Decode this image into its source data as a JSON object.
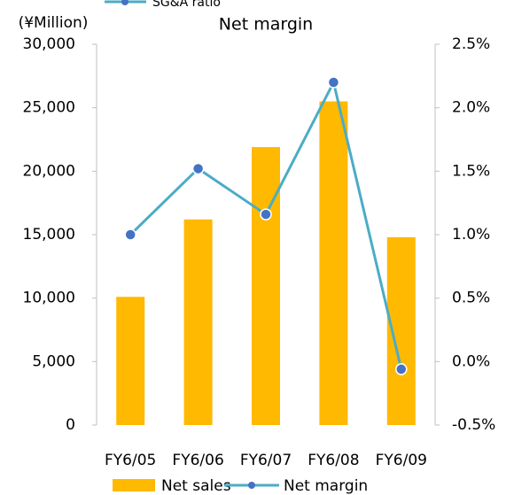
{
  "chart_data": {
    "type": "bar_line",
    "title": "Net margin",
    "y_label": "(¥Million)",
    "top_legend_item": "SG&A ratio",
    "categories": [
      "FY6/05",
      "FY6/06",
      "FY6/07",
      "FY6/08",
      "FY6/09"
    ],
    "series": [
      {
        "name": "Net sales",
        "color": "#ffb900",
        "type": "bar",
        "values": [
          10100,
          16200,
          21900,
          25500,
          14800
        ]
      },
      {
        "name": "Net margin",
        "color": "#4bacc6",
        "marker_color": "#4472c4",
        "type": "line",
        "axis": "y2",
        "values": [
          1.0,
          1.52,
          1.16,
          2.2,
          -0.06
        ]
      }
    ],
    "ylim": [
      0,
      30000
    ],
    "yticks": [
      0,
      {
        "value": 5000,
        "label": "5,000"
      },
      {
        "value": 10000,
        "label": "10,000"
      },
      {
        "value": 15000,
        "label": "15,000"
      },
      {
        "value": 20000,
        "label": "20,000"
      },
      {
        "value": 25000,
        "label": "25,000"
      },
      {
        "value": 30000,
        "label": "30,000"
      }
    ],
    "y2lim": [
      -0.5,
      2.5
    ],
    "y2ticks": [
      {
        "value": -0.5,
        "label": "-0.5%"
      },
      {
        "value": 0,
        "label": "0.0%"
      },
      {
        "value": 0.5,
        "label": "0.5%"
      },
      {
        "value": 1.0,
        "label": "1.0%"
      },
      {
        "value": 1.5,
        "label": "1.5%"
      },
      {
        "value": 2.0,
        "label": "2.0%"
      },
      {
        "value": 2.5,
        "label": "2.5%"
      }
    ],
    "grid": false
  }
}
